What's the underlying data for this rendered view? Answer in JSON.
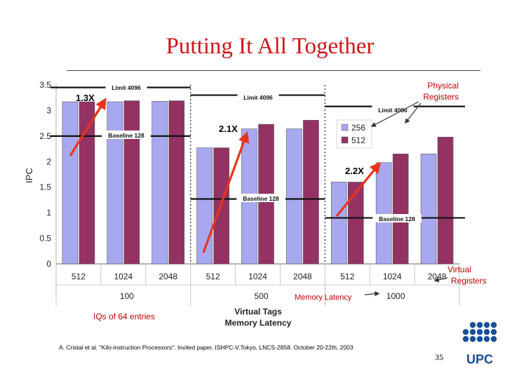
{
  "slide": {
    "title": "Putting It All Together",
    "page_number": "35",
    "citation": "A. Cristal et al. \"Kilo-instruction Processors\". Invited paper. ISHPC-V.Tokyo, LNCS-2858. October 20-22th, 2003",
    "iq_note": "IQs of 64 entries",
    "logo_text": "UPC"
  },
  "chart_data": {
    "type": "bar",
    "ylabel": "IPC",
    "ylim": [
      0,
      3.5
    ],
    "yticks": [
      "3.5",
      "3",
      "2.5",
      "2",
      "1.5",
      "1",
      "0.5",
      "0"
    ],
    "categories": [
      "512",
      "1024",
      "2048",
      "512",
      "1024",
      "2048",
      "512",
      "1024",
      "2048"
    ],
    "groups": [
      "100",
      "500",
      "1000"
    ],
    "series": [
      {
        "name": "256",
        "color": "#a8a8f0",
        "values": [
          3.17,
          3.17,
          3.18,
          2.27,
          2.64,
          2.64,
          1.6,
          1.98,
          2.15
        ]
      },
      {
        "name": "512",
        "color": "#943264",
        "values": [
          3.17,
          3.19,
          3.19,
          2.27,
          2.73,
          2.81,
          1.6,
          2.15,
          2.48
        ]
      }
    ],
    "legend_position": "right",
    "x_axis_title_lines": [
      "Virtual Tags",
      "Memory Latency"
    ],
    "annotations": {
      "physical_registers": "Physical\nRegisters",
      "virtual_registers": "Virtual\nRegisters",
      "memory_latency": "Memory Latency",
      "speedup_100": "1.3X",
      "speedup_500": "2.1X",
      "speedup_1000": "2.2X"
    },
    "limit_lines": [
      {
        "label": "Limit 4096",
        "value": 3.45,
        "group": 0
      },
      {
        "label": "Limit 4096",
        "value": 3.3,
        "group": 1
      },
      {
        "label": "Limit 4096",
        "value": 3.08,
        "group": 2
      }
    ],
    "baseline_lines": [
      {
        "label": "Baseline 128",
        "value": 2.5,
        "group": 0
      },
      {
        "label": "Baseline 128",
        "value": 1.27,
        "group": 1
      },
      {
        "label": "Baseline 128",
        "value": 0.9,
        "group": 2
      }
    ]
  }
}
